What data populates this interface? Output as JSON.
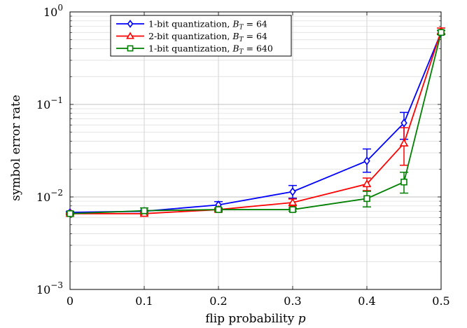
{
  "chart_data": {
    "type": "line",
    "xlabel": "flip probability p",
    "ylabel": "symbol error rate",
    "xlim": [
      0,
      0.5
    ],
    "ylim": [
      0.001,
      1
    ],
    "yscale": "log",
    "grid": true,
    "legend_position": "top-left",
    "x_ticks": [
      {
        "value": 0,
        "label": "0"
      },
      {
        "value": 0.1,
        "label": "0.1"
      },
      {
        "value": 0.2,
        "label": "0.2"
      },
      {
        "value": 0.3,
        "label": "0.3"
      },
      {
        "value": 0.4,
        "label": "0.4"
      },
      {
        "value": 0.5,
        "label": "0.5"
      }
    ],
    "y_ticks": [
      {
        "value": 0.001,
        "base": "10",
        "exp": "−3"
      },
      {
        "value": 0.01,
        "base": "10",
        "exp": "−2"
      },
      {
        "value": 0.1,
        "base": "10",
        "exp": "−1"
      },
      {
        "value": 1,
        "base": "10",
        "exp": "0"
      }
    ],
    "series": [
      {
        "name": "1-bit quantization, B_T = 64",
        "legend_text": "1-bit quantization, ",
        "legend_var": "B",
        "legend_sub": "T",
        "legend_value": " = 64",
        "color": "#0000ff",
        "marker": "diamond",
        "x": [
          0,
          0.1,
          0.2,
          0.3,
          0.4,
          0.45,
          0.5
        ],
        "y": [
          0.0068,
          0.007,
          0.0082,
          0.0114,
          0.0245,
          0.063,
          0.6
        ],
        "err_low": [
          0.0066,
          0.0068,
          0.0075,
          0.0097,
          0.0185,
          0.042,
          0.57
        ],
        "err_high": [
          0.007,
          0.0072,
          0.0089,
          0.0133,
          0.033,
          0.082,
          0.63
        ]
      },
      {
        "name": "2-bit quantization, B_T = 64",
        "legend_text": "2-bit quantization, ",
        "legend_var": "B",
        "legend_sub": "T",
        "legend_value": " = 64",
        "color": "#ff0000",
        "marker": "triangle",
        "x": [
          0,
          0.1,
          0.2,
          0.3,
          0.4,
          0.45,
          0.5
        ],
        "y": [
          0.0066,
          0.0066,
          0.0073,
          0.0087,
          0.0138,
          0.038,
          0.62
        ],
        "err_low": [
          0.0065,
          0.0064,
          0.0071,
          0.008,
          0.0117,
          0.022,
          0.58
        ],
        "err_high": [
          0.0067,
          0.0068,
          0.0075,
          0.0095,
          0.016,
          0.056,
          0.67
        ]
      },
      {
        "name": "1-bit quantization, B_T = 640",
        "legend_text": "1-bit quantization, ",
        "legend_var": "B",
        "legend_sub": "T",
        "legend_value": " = 640",
        "color": "#008000",
        "marker": "square",
        "x": [
          0,
          0.1,
          0.2,
          0.3,
          0.4,
          0.45,
          0.5
        ],
        "y": [
          0.0066,
          0.0071,
          0.0073,
          0.0073,
          0.0096,
          0.0145,
          0.6
        ],
        "err_low": [
          0.0064,
          0.0066,
          0.007,
          0.007,
          0.0078,
          0.011,
          0.57
        ],
        "err_high": [
          0.0068,
          0.0076,
          0.0076,
          0.0076,
          0.0115,
          0.0185,
          0.63
        ]
      }
    ]
  }
}
